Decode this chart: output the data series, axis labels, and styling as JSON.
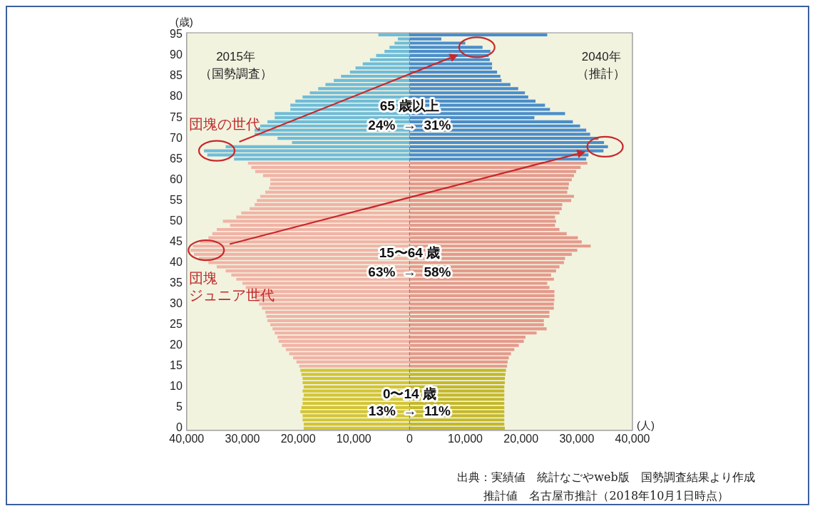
{
  "chart_data": {
    "type": "bar",
    "orientation": "horizontal",
    "stacked": true,
    "ylabel": "(歳)",
    "xlabel": "(人)",
    "categories": [
      "95",
      null,
      null,
      null,
      null,
      "90",
      null,
      null,
      null,
      null,
      "85",
      null,
      null,
      null,
      null,
      "80",
      null,
      null,
      null,
      null,
      "75",
      null,
      null,
      null,
      null,
      "70",
      null,
      null,
      null,
      null,
      "65",
      null,
      null,
      null,
      null,
      "60",
      null,
      null,
      null,
      null,
      "55",
      null,
      null,
      null,
      null,
      "50",
      null,
      null,
      null,
      null,
      "45",
      null,
      null,
      null,
      null,
      "40",
      null,
      null,
      null,
      null,
      "35",
      null,
      null,
      null,
      null,
      "30",
      null,
      null,
      null,
      null,
      "25",
      null,
      null,
      null,
      null,
      "20",
      null,
      null,
      null,
      null,
      "15",
      null,
      null,
      null,
      null,
      "10",
      null,
      null,
      null,
      null,
      "5",
      null,
      null,
      null,
      null,
      "0"
    ],
    "series": [
      {
        "name": "2015年（国勢調査）",
        "colors": [
          "#6fbcd8",
          "#6fbcd8",
          "#6fbcd8",
          "#6fbcd8",
          "#6fbcd8",
          "#6fbcd8",
          "#6fbcd8",
          "#6fbcd8",
          "#6fbcd8",
          "#6fbcd8",
          "#6fbcd8",
          "#6fbcd8",
          "#6fbcd8",
          "#6fbcd8",
          "#6fbcd8",
          "#6fbcd8",
          "#6fbcd8",
          "#6fbcd8",
          "#6fbcd8",
          "#6fbcd8",
          "#6fbcd8",
          "#6fbcd8",
          "#6fbcd8",
          "#6fbcd8",
          "#6fbcd8",
          "#6fbcd8",
          "#6fbcd8",
          "#6fbcd8",
          "#6fbcd8",
          "#6fbcd8",
          "#6fbcd8",
          "#f1b3a6",
          "#f1b3a6",
          "#f1b3a6",
          "#f1b3a6",
          "#f1b3a6",
          "#f1b3a6",
          "#f1b3a6",
          "#f1b3a6",
          "#f1b3a6",
          "#f1b3a6",
          "#f1b3a6",
          "#f1b3a6",
          "#f1b3a6",
          "#f1b3a6",
          "#f1b3a6",
          "#f1b3a6",
          "#f1b3a6",
          "#f1b3a6",
          "#f1b3a6",
          "#f1b3a6",
          "#f1b3a6",
          "#f1b3a6",
          "#f1b3a6",
          "#f1b3a6",
          "#f1b3a6",
          "#f1b3a6",
          "#f1b3a6",
          "#f1b3a6",
          "#f1b3a6",
          "#f1b3a6",
          "#f1b3a6",
          "#f1b3a6",
          "#f1b3a6",
          "#f1b3a6",
          "#f1b3a6",
          "#f1b3a6",
          "#f1b3a6",
          "#f1b3a6",
          "#f1b3a6",
          "#f1b3a6",
          "#f1b3a6",
          "#f1b3a6",
          "#f1b3a6",
          "#f1b3a6",
          "#f1b3a6",
          "#f1b3a6",
          "#f1b3a6",
          "#f1b3a6",
          "#f1b3a6",
          "#f1b3a6",
          "#d3c534",
          "#d3c534",
          "#d3c534",
          "#d3c534",
          "#d3c534",
          "#d3c534",
          "#d3c534",
          "#d3c534",
          "#d3c534",
          "#d3c534",
          "#d3c534",
          "#d3c534",
          "#d3c534",
          "#d3c534",
          "#d3c534"
        ],
        "values": [
          -5600,
          -2100,
          -2700,
          -3600,
          -4500,
          -6000,
          -7100,
          -8400,
          -9700,
          -10700,
          -12300,
          -13600,
          -15100,
          -16400,
          -17900,
          -19200,
          -20500,
          -21400,
          -21400,
          -24200,
          -24200,
          -25500,
          -26800,
          -27800,
          -27800,
          -23700,
          -21100,
          -33000,
          -36900,
          -36300,
          -31500,
          -29000,
          -28400,
          -27700,
          -26300,
          -25000,
          -25000,
          -25200,
          -25900,
          -26800,
          -27400,
          -27800,
          -28700,
          -30200,
          -31100,
          -33500,
          -32200,
          -34600,
          -35400,
          -36100,
          -37600,
          -38900,
          -39300,
          -38700,
          -37800,
          -36100,
          -34600,
          -33000,
          -32000,
          -31100,
          -30000,
          -29400,
          -28500,
          -27800,
          -27700,
          -27000,
          -26500,
          -25900,
          -25700,
          -25500,
          -25000,
          -24600,
          -24200,
          -23700,
          -23500,
          -22900,
          -22200,
          -21600,
          -20900,
          -20300,
          -19800,
          -19600,
          -19400,
          -19200,
          -19200,
          -19000,
          -19200,
          -19000,
          -19200,
          -19200,
          -19400,
          -19600,
          -19200,
          -19200,
          -19000,
          -19000
        ]
      },
      {
        "name": "2040年（推計）",
        "colors": [
          "#4a8dcb",
          "#4a8dcb",
          "#4a8dcb",
          "#4a8dcb",
          "#4a8dcb",
          "#4a8dcb",
          "#4a8dcb",
          "#4a8dcb",
          "#4a8dcb",
          "#4a8dcb",
          "#4a8dcb",
          "#4a8dcb",
          "#4a8dcb",
          "#4a8dcb",
          "#4a8dcb",
          "#4a8dcb",
          "#4a8dcb",
          "#4a8dcb",
          "#4a8dcb",
          "#4a8dcb",
          "#4a8dcb",
          "#4a8dcb",
          "#4a8dcb",
          "#4a8dcb",
          "#4a8dcb",
          "#4a8dcb",
          "#4a8dcb",
          "#4a8dcb",
          "#4a8dcb",
          "#4a8dcb",
          "#4a8dcb",
          "#e59a8c",
          "#e59a8c",
          "#e59a8c",
          "#e59a8c",
          "#e59a8c",
          "#e59a8c",
          "#e59a8c",
          "#e59a8c",
          "#e59a8c",
          "#e59a8c",
          "#e59a8c",
          "#e59a8c",
          "#e59a8c",
          "#e59a8c",
          "#e59a8c",
          "#e59a8c",
          "#e59a8c",
          "#e59a8c",
          "#e59a8c",
          "#e59a8c",
          "#e59a8c",
          "#e59a8c",
          "#e59a8c",
          "#e59a8c",
          "#e59a8c",
          "#e59a8c",
          "#e59a8c",
          "#e59a8c",
          "#e59a8c",
          "#e59a8c",
          "#e59a8c",
          "#e59a8c",
          "#e59a8c",
          "#e59a8c",
          "#e59a8c",
          "#e59a8c",
          "#e59a8c",
          "#e59a8c",
          "#e59a8c",
          "#e59a8c",
          "#e59a8c",
          "#e59a8c",
          "#e59a8c",
          "#e59a8c",
          "#e59a8c",
          "#e59a8c",
          "#e59a8c",
          "#e59a8c",
          "#e59a8c",
          "#e59a8c",
          "#c4b82a",
          "#c4b82a",
          "#c4b82a",
          "#c4b82a",
          "#c4b82a",
          "#c4b82a",
          "#c4b82a",
          "#c4b82a",
          "#c4b82a",
          "#c4b82a",
          "#c4b82a",
          "#c4b82a",
          "#c4b82a",
          "#c4b82a",
          "#c4b82a"
        ],
        "values": [
          24700,
          5700,
          10000,
          13100,
          14500,
          14200,
          14400,
          14800,
          14800,
          15700,
          16300,
          16500,
          18100,
          19500,
          20700,
          21300,
          22600,
          24300,
          25200,
          27900,
          22400,
          29300,
          30600,
          31700,
          32400,
          33900,
          34900,
          35600,
          34800,
          32100,
          31700,
          31900,
          30700,
          29900,
          29500,
          29100,
          28600,
          28500,
          28300,
          29500,
          29000,
          27400,
          27300,
          26900,
          26100,
          26300,
          26100,
          26900,
          28200,
          30200,
          30900,
          32500,
          30100,
          29100,
          27900,
          27700,
          26900,
          26300,
          25400,
          25900,
          24700,
          25100,
          26000,
          26000,
          26000,
          25900,
          25900,
          25100,
          25100,
          24100,
          24100,
          24600,
          22800,
          20800,
          20500,
          19600,
          18800,
          18200,
          17800,
          17600,
          17500,
          17300,
          17200,
          17100,
          17100,
          17000,
          17000,
          17000,
          17000,
          17000,
          17000,
          17000,
          17000,
          17000,
          17000,
          17100
        ]
      }
    ],
    "xlim": [
      -40000,
      40000
    ],
    "xticks": [
      {
        "value": -40000,
        "label": "40,000"
      },
      {
        "value": -30000,
        "label": "30,000"
      },
      {
        "value": -20000,
        "label": "20,000"
      },
      {
        "value": -10000,
        "label": "10,000"
      },
      0,
      {
        "value": 10000,
        "label": "10,000"
      },
      {
        "value": 20000,
        "label": "20,000"
      },
      {
        "value": 30000,
        "label": "30,000"
      },
      {
        "value": 40000,
        "label": "40,000"
      }
    ],
    "ref_lines": [
      {
        "axis": "x",
        "value": 0,
        "color": "#7a7a7a",
        "line_style": "dashed"
      }
    ],
    "grid": false,
    "legend": false,
    "annotations": [
      "65 歳以上",
      "24%  →  31%",
      "15〜64 歳",
      "63%  →  58%",
      "0〜14 歳",
      "13%  →  11%",
      "団塊の世代",
      "団塊",
      "ジュニア世代",
      "出典：実績値　統計なごやweb版　国勢調査結果より作成",
      "推計値　名古屋市推計（2018年10月1日時点）"
    ]
  }
}
